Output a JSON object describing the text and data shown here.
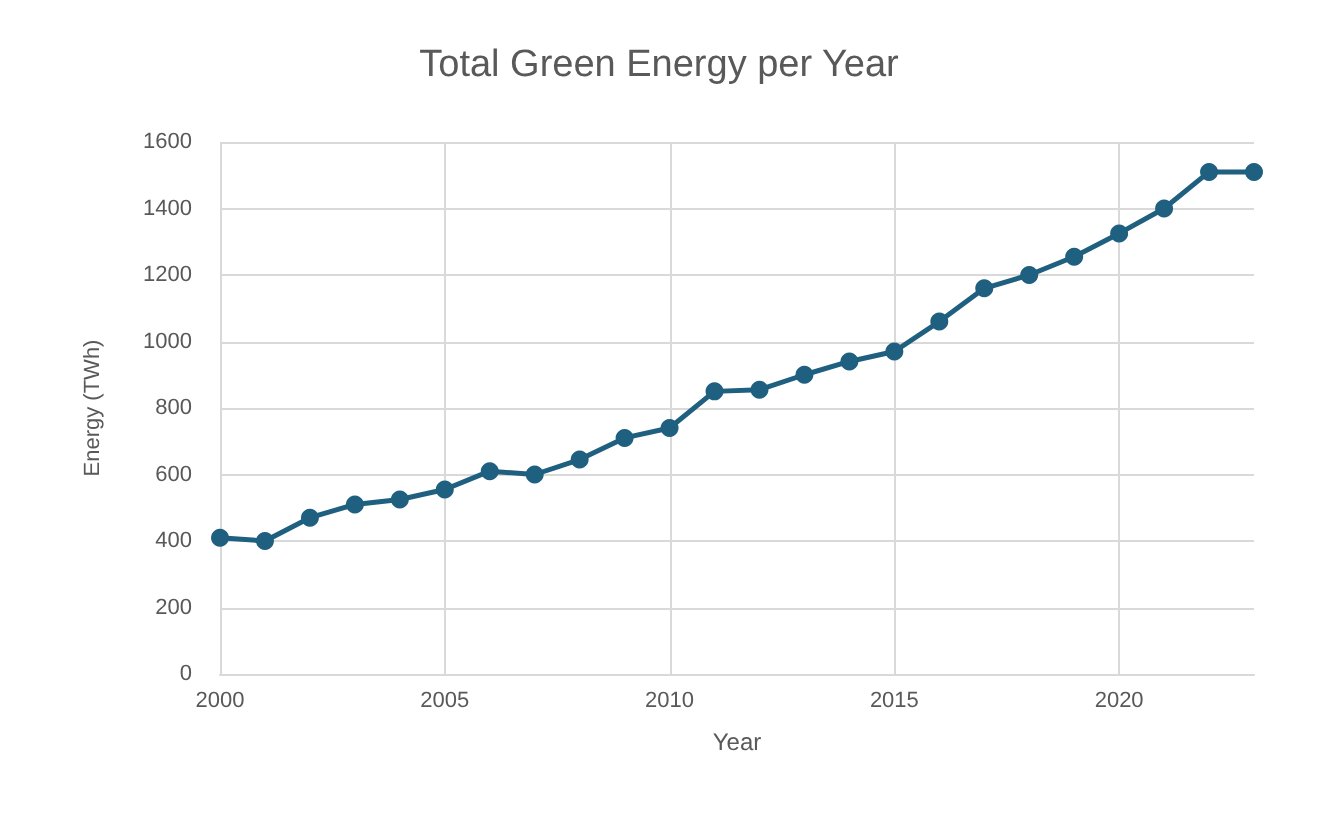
{
  "chart_data": {
    "type": "line",
    "title": "Total Green Energy per Year",
    "xlabel": "Year",
    "ylabel": "Energy (TWh)",
    "x": [
      2000,
      2001,
      2002,
      2003,
      2004,
      2005,
      2006,
      2007,
      2008,
      2009,
      2010,
      2011,
      2012,
      2013,
      2014,
      2015,
      2016,
      2017,
      2018,
      2019,
      2020,
      2021,
      2022,
      2023
    ],
    "series": [
      {
        "color": "#1f5f7f",
        "values": [
          410,
          400,
          470,
          510,
          525,
          555,
          610,
          600,
          645,
          710,
          740,
          850,
          855,
          900,
          940,
          970,
          1060,
          1160,
          1200,
          1255,
          1325,
          1400,
          1510,
          1510
        ]
      }
    ],
    "xlim": [
      2000,
      2023
    ],
    "xticks": [
      2000,
      2005,
      2010,
      2015,
      2020
    ],
    "ylim": [
      0,
      1600
    ],
    "yticks": [
      0,
      200,
      400,
      600,
      800,
      1000,
      1200,
      1400,
      1600
    ],
    "grid": true,
    "marker": "circle",
    "line_style": "solid"
  }
}
